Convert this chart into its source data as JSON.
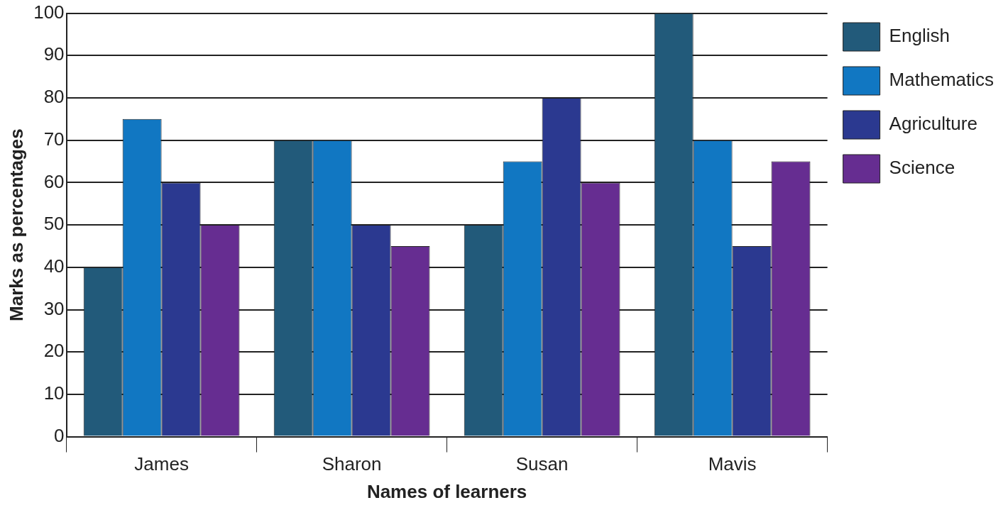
{
  "chart_data": {
    "type": "bar",
    "xlabel": "Names of learners",
    "ylabel": "Marks as percentages",
    "categories": [
      "James",
      "Sharon",
      "Susan",
      "Mavis"
    ],
    "series": [
      {
        "name": "English",
        "color": "#225a7a",
        "values": [
          40,
          70,
          50,
          100
        ]
      },
      {
        "name": "Mathematics",
        "color": "#1177c2",
        "values": [
          75,
          70,
          65,
          70
        ]
      },
      {
        "name": "Agriculture",
        "color": "#2b3990",
        "values": [
          60,
          50,
          80,
          45
        ]
      },
      {
        "name": "Science",
        "color": "#662d91",
        "values": [
          50,
          45,
          60,
          65
        ]
      }
    ],
    "ylim": [
      0,
      100
    ],
    "yticks": [
      0,
      10,
      20,
      30,
      40,
      50,
      60,
      70,
      80,
      90,
      100
    ],
    "grid": "y",
    "legend": "right"
  }
}
